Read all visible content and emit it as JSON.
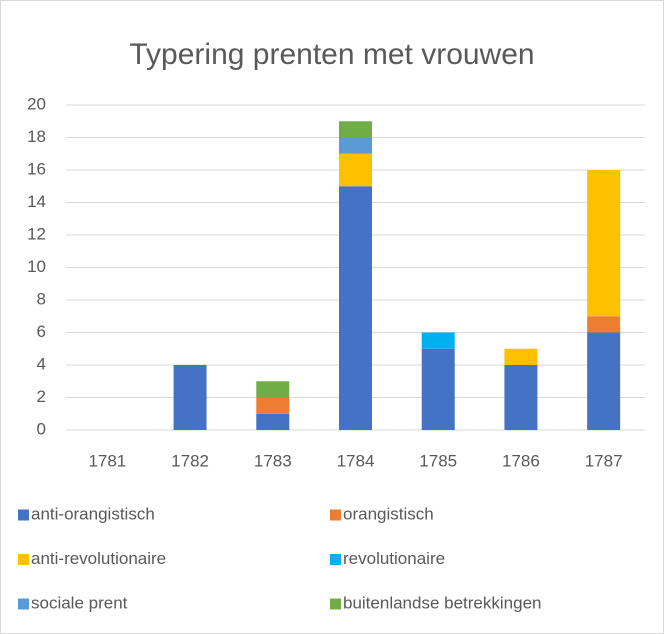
{
  "chart_data": {
    "type": "stacked_bar",
    "title": "Typering prenten met vrouwen",
    "categories": [
      "1781",
      "1782",
      "1783",
      "1784",
      "1785",
      "1786",
      "1787"
    ],
    "series": [
      {
        "name": "anti-orangistisch",
        "color": "#4472c4",
        "values": [
          0,
          4,
          1,
          15,
          5,
          4,
          6
        ]
      },
      {
        "name": "orangistisch",
        "color": "#ed7d31",
        "values": [
          0,
          0,
          1,
          0,
          0,
          0,
          1
        ]
      },
      {
        "name": "anti-revolutionaire",
        "color": "#ffc000",
        "values": [
          0,
          0,
          0,
          2,
          0,
          1,
          9
        ]
      },
      {
        "name": "revolutionaire",
        "color": "#00b0f0",
        "values": [
          0,
          0,
          0,
          0,
          1,
          0,
          0
        ]
      },
      {
        "name": "sociale prent",
        "color": "#5b9bd5",
        "values": [
          0,
          0,
          0,
          1,
          0,
          0,
          0
        ]
      },
      {
        "name": "buitenlandse betrekkingen",
        "color": "#70ad47",
        "values": [
          0,
          0,
          1,
          1,
          0,
          0,
          0
        ]
      }
    ],
    "ylim": [
      0,
      20
    ],
    "yticks": [
      0,
      2,
      4,
      6,
      8,
      10,
      12,
      14,
      16,
      18,
      20
    ],
    "grid": true,
    "legend": "bottom"
  }
}
